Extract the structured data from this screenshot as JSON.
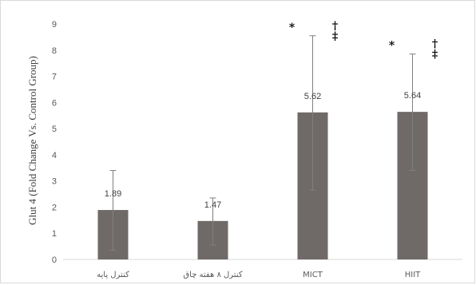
{
  "chart_data": {
    "type": "bar",
    "ylabel": "Glut 4 (Fold Change Vs. Control Group)",
    "ylim": [
      0,
      9
    ],
    "yticks": [
      "0",
      "1",
      "2",
      "3",
      "4",
      "5",
      "6",
      "7",
      "8",
      "9"
    ],
    "grid": false,
    "bar_color": "#6f6a68",
    "categories": [
      "کنترل پایه",
      "کنترل ۸ هفته چاق",
      "MICT",
      "HIIT"
    ],
    "values": [
      1.89,
      1.47,
      5.62,
      5.64
    ],
    "data_labels": [
      "1.89",
      "1.47",
      "5.62",
      "5.64"
    ],
    "error_low": [
      0.35,
      0.55,
      2.65,
      3.4
    ],
    "error_high": [
      3.4,
      2.35,
      8.55,
      7.85
    ],
    "significance": [
      {
        "category": "MICT",
        "star": "*",
        "dagger": "†",
        "double_dagger": "‡"
      },
      {
        "category": "HIIT",
        "star": "*",
        "dagger": "†",
        "double_dagger": "‡"
      }
    ]
  }
}
